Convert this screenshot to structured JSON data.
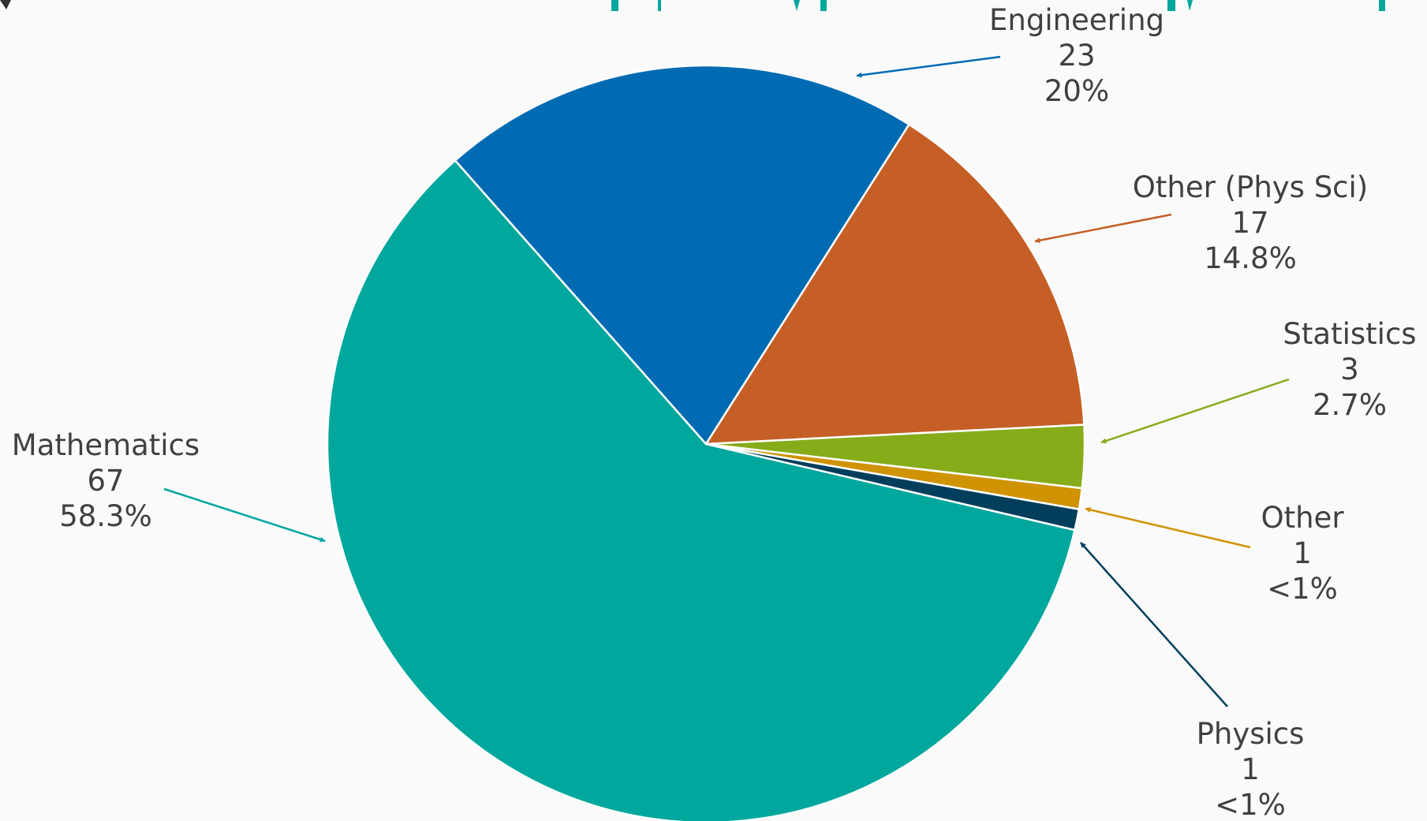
{
  "chart_data": {
    "type": "pie",
    "title_fragment": "                    ",
    "series_order": "clockwise from top-left",
    "slices": [
      {
        "name": "Engineering",
        "value": 23,
        "percent_label": "20%",
        "color": "#006bb2"
      },
      {
        "name": "Other (Phys Sci)",
        "value": 17,
        "percent_label": "14.8%",
        "color": "#c55f25"
      },
      {
        "name": "Statistics",
        "value": 3,
        "percent_label": "2.7%",
        "color": "#86ac19"
      },
      {
        "name": "Other",
        "value": 1,
        "percent_label": "<1%",
        "color": "#cf9303"
      },
      {
        "name": "Physics",
        "value": 1,
        "percent_label": "<1%",
        "color": "#003e5c"
      },
      {
        "name": "Mathematics",
        "value": 67,
        "percent_label": "58.3%",
        "color": "#00a79d"
      }
    ],
    "legend": "none",
    "data_labels": "outside with leader arrows"
  }
}
